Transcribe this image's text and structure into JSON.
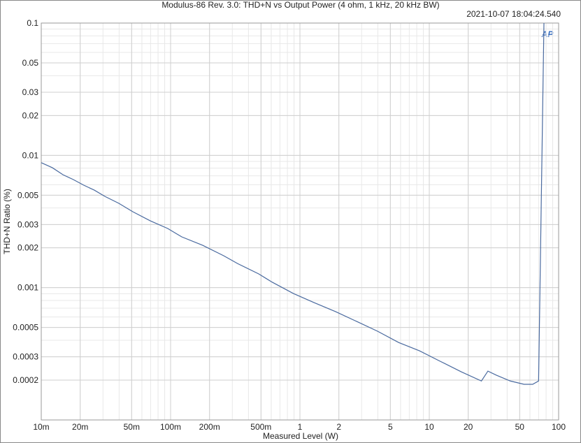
{
  "chart_data": {
    "type": "line",
    "title": "Modulus-86 Rev. 3.0: THD+N vs Output Power (4 ohm, 1 kHz, 20 kHz BW)",
    "timestamp": "2021-10-07 18:04:24.540",
    "logo": "AP",
    "x_label": "Measured Level (W)",
    "y_label": "THD+N Ratio (%)",
    "x_log": true,
    "y_log": true,
    "grid": true,
    "minor_grid": true,
    "xlim": [
      0.01,
      100
    ],
    "ylim": [
      0.0001,
      0.1
    ],
    "xticks": [
      {
        "value": 0.01,
        "label": "10m"
      },
      {
        "value": 0.02,
        "label": "20m"
      },
      {
        "value": 0.05,
        "label": "50m"
      },
      {
        "value": 0.1,
        "label": "100m"
      },
      {
        "value": 0.2,
        "label": "200m"
      },
      {
        "value": 0.5,
        "label": "500m"
      },
      1,
      2,
      5,
      10,
      20,
      50,
      100
    ],
    "yticks": [
      0.1,
      0.05,
      0.03,
      0.02,
      0.01,
      0.005,
      0.003,
      0.002,
      0.001,
      0.0005,
      0.0003,
      0.0002
    ],
    "x": [
      0.01,
      0.0122,
      0.0147,
      0.0177,
      0.0213,
      0.0257,
      0.031,
      0.0398,
      0.051,
      0.0697,
      0.095,
      0.122,
      0.177,
      0.258,
      0.33,
      0.48,
      0.61,
      0.89,
      1.29,
      1.89,
      2.75,
      3.99,
      5.8,
      8.4,
      12.2,
      17.7,
      25.3,
      28.4,
      33,
      42.3,
      54,
      63,
      70,
      77
    ],
    "series": [
      {
        "name": "THD+N",
        "color": "#4a6a9f",
        "values": [
          0.0088,
          0.00806,
          0.00714,
          0.00656,
          0.00595,
          0.00546,
          0.0049,
          0.00434,
          0.00375,
          0.0032,
          0.0028,
          0.00242,
          0.00209,
          0.00174,
          0.00152,
          0.00127,
          0.0011,
          0.000903,
          0.00077,
          0.000658,
          0.000555,
          0.000468,
          0.000385,
          0.000333,
          0.000277,
          0.000231,
          0.000197,
          0.000234,
          0.000218,
          0.000197,
          0.000186,
          0.000186,
          0.000197,
          0.1
        ]
      }
    ]
  }
}
